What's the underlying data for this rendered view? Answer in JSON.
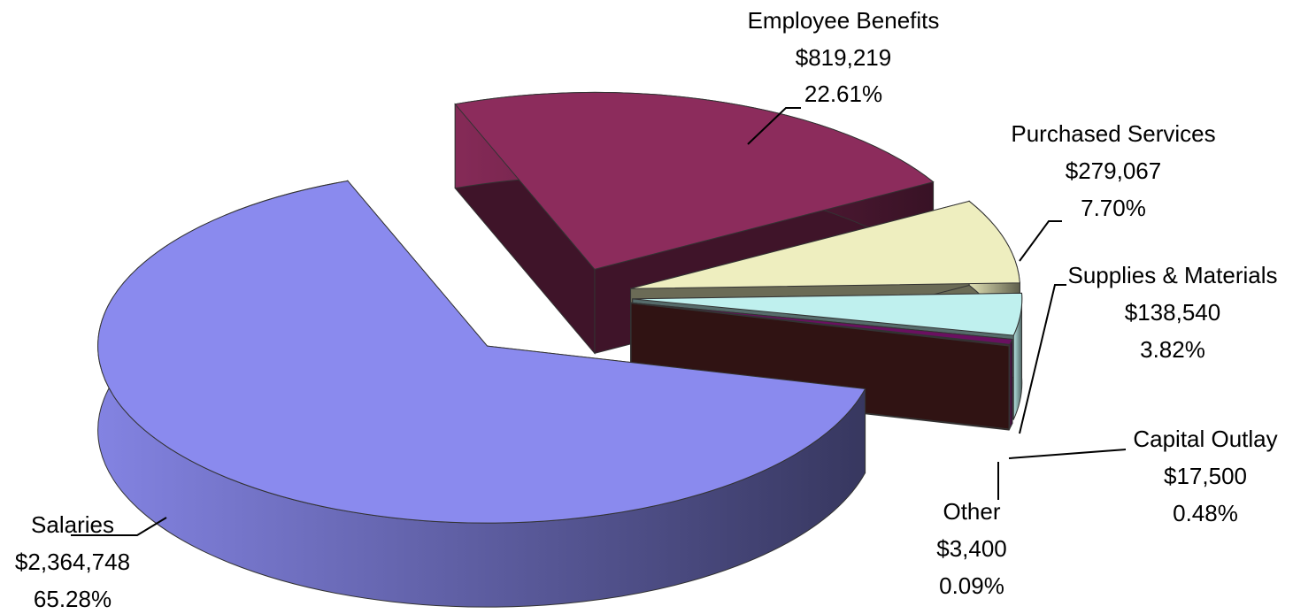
{
  "chart_data": {
    "type": "pie3d",
    "categories": [
      "Salaries",
      "Other",
      "Capital Outlay",
      "Supplies & Materials",
      "Purchased Services",
      "Employee Benefits"
    ],
    "values": [
      2364748,
      3400,
      17500,
      138540,
      279067,
      819219
    ],
    "value_labels": [
      "$2,364,748",
      "$3,400",
      "$17,500",
      "$138,540",
      "$279,067",
      "$819,219"
    ],
    "percentages": [
      65.28,
      0.09,
      0.48,
      3.82,
      7.7,
      22.61
    ],
    "percentage_labels": [
      "65.28%",
      "0.09%",
      "0.48%",
      "3.82%",
      "7.70%",
      "22.61%"
    ],
    "colors": [
      "#8a8aee",
      "#6b2a2a",
      "#6a1060",
      "#bff0ee",
      "#eeeebf",
      "#8c2c5c"
    ]
  }
}
